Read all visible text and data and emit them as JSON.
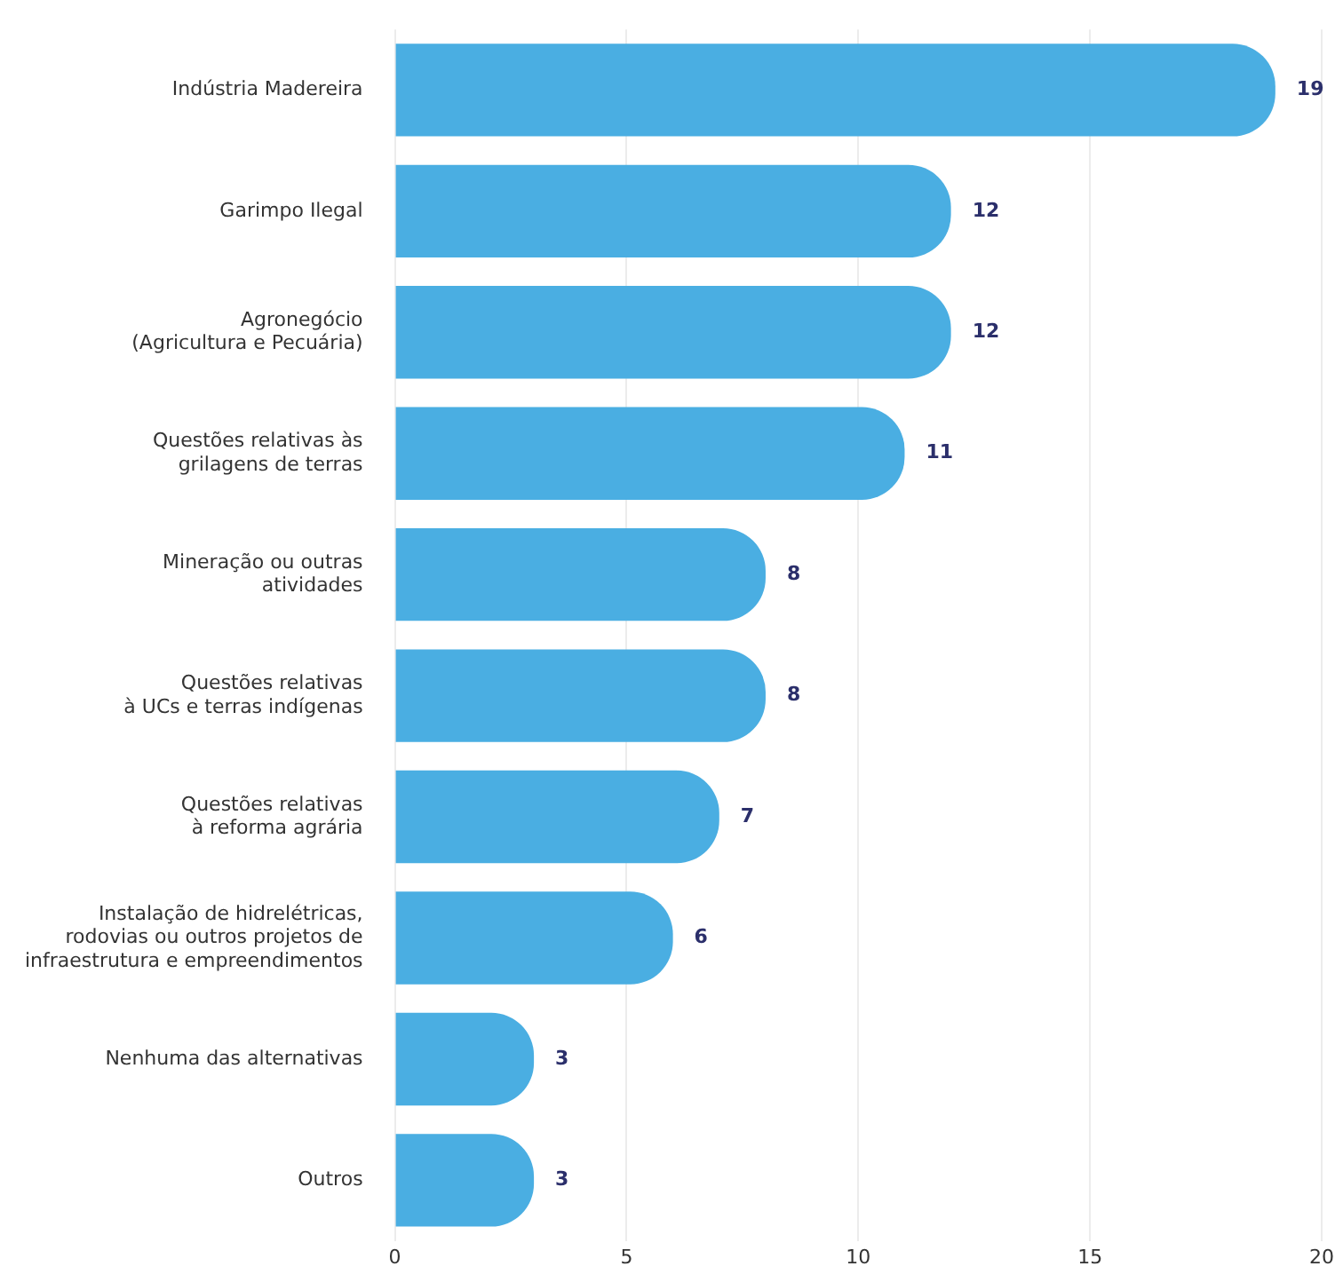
{
  "chart_data": {
    "type": "bar",
    "orientation": "horizontal",
    "categories": [
      "Indústria Madereira",
      "Garimpo Ilegal",
      "Agronegócio\n(Agricultura e Pecuária)",
      "Questões relativas às\ngrilagens de terras",
      "Mineração ou outras\natividades",
      "Questões relativas\nà UCs e terras indígenas",
      "Questões relativas\nà reforma agrária",
      "Instalação de hidrelétricas,\nrodovias ou outros projetos de\ninfraestrutura e empreendimentos",
      "Nenhuma das alternativas",
      "Outros"
    ],
    "values": [
      19,
      12,
      12,
      11,
      8,
      8,
      7,
      6,
      3,
      3
    ],
    "color": "#4aaee2",
    "xlim": [
      0,
      20
    ],
    "xticks": [
      0,
      5,
      10,
      15,
      20
    ],
    "grid": "x",
    "data_labels": true
  }
}
